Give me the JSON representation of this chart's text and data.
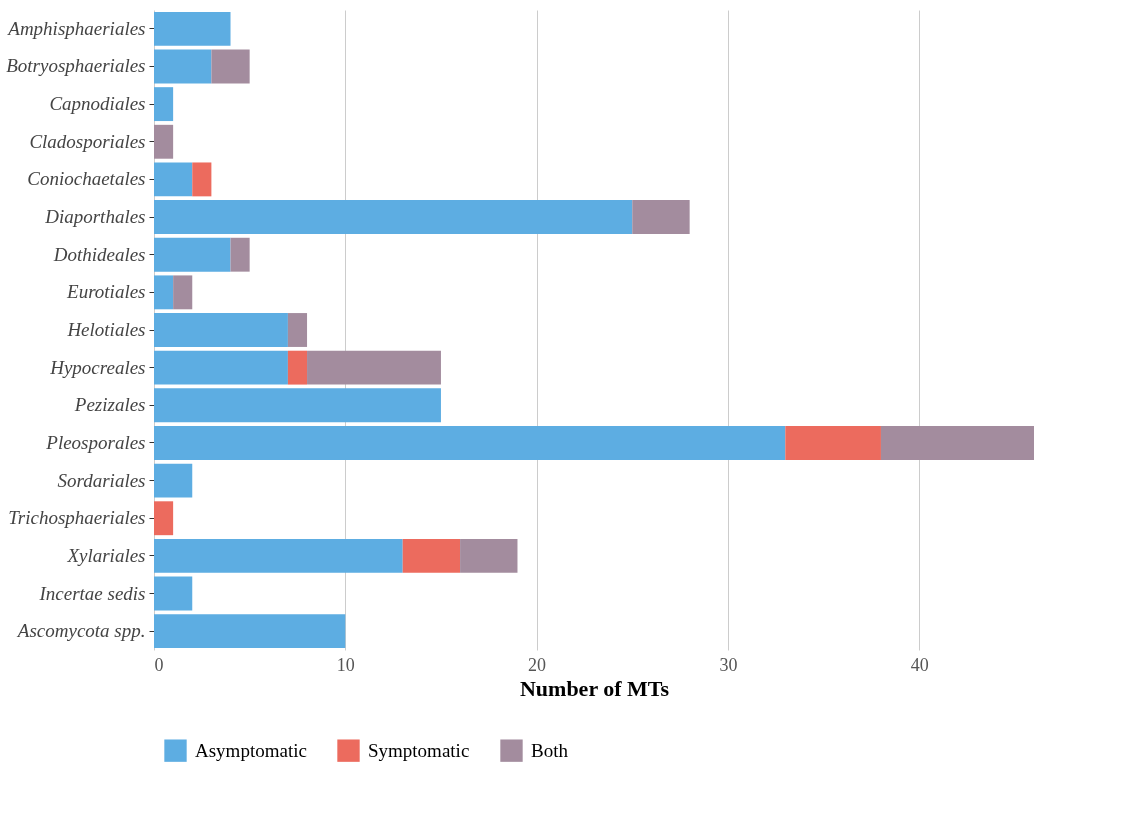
{
  "chart_data": {
    "type": "bar",
    "orientation": "horizontal",
    "stacked": true,
    "categories": [
      "Amphisphaeriales",
      "Botryosphaeriales",
      "Capnodiales",
      "Cladosporiales",
      "Coniochaetales",
      "Diaporthales",
      "Dothideales",
      "Eurotiales",
      "Helotiales",
      "Hypocreales",
      "Pezizales",
      "Pleosporales",
      "Sordariales",
      "Trichosphaeriales",
      "Xylariales",
      "Incertae sedis",
      "Ascomycota spp."
    ],
    "series": [
      {
        "name": "Asymptomatic",
        "color": "#5dade2",
        "values": [
          4,
          3,
          1,
          0,
          2,
          25,
          4,
          1,
          7,
          7,
          15,
          33,
          2,
          0,
          13,
          2,
          10
        ]
      },
      {
        "name": "Symptomatic",
        "color": "#ec6b5e",
        "values": [
          0,
          0,
          0,
          0,
          1,
          0,
          0,
          0,
          0,
          1,
          0,
          5,
          0,
          1,
          3,
          0,
          0
        ]
      },
      {
        "name": "Both",
        "color": "#a38c9e",
        "values": [
          0,
          2,
          0,
          1,
          0,
          3,
          1,
          1,
          1,
          7,
          0,
          8,
          0,
          0,
          3,
          0,
          0
        ]
      }
    ],
    "xlabel": "Number of MTs",
    "xlim": [
      0,
      46
    ],
    "xticks": [
      0,
      10,
      20,
      30,
      40
    ],
    "grid": "x",
    "legend": "bottom"
  }
}
